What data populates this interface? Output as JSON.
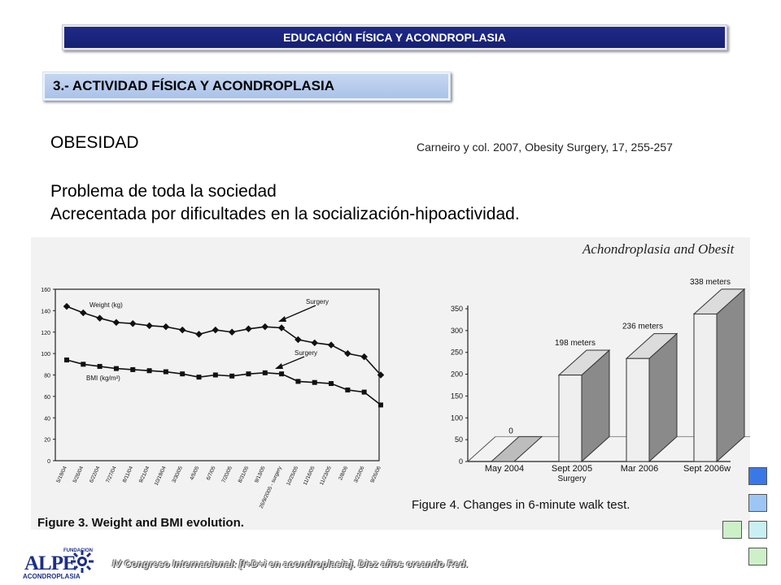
{
  "header": {
    "title": "EDUCACIÓN FÍSICA Y ACONDROPLASIA"
  },
  "section": {
    "title": "3.- ACTIVIDAD FÍSICA Y ACONDROPLASIA"
  },
  "body": {
    "heading": "OBESIDAD",
    "citation": "Carneiro y col. 2007, Obesity Surgery, 17, 255-257",
    "line1": "Problema de toda la sociedad",
    "line2": "Acrecentada por dificultades en la socialización-hipoactividad."
  },
  "figure_header": "Achondroplasia and Obesit",
  "chart_data": [
    {
      "type": "line",
      "caption": "Figure 3. Weight and BMI evolution.",
      "ylim": [
        0,
        160
      ],
      "yticks": [
        0,
        20,
        40,
        60,
        80,
        100,
        120,
        140,
        160
      ],
      "x": [
        "5/19/04",
        "5/26/04",
        "6/22/04",
        "7/27/04",
        "8/11/04",
        "9/21/04",
        "10/19/04",
        "3/30/05",
        "4/5/05",
        "6/7/05",
        "7/20/05",
        "8/31/05",
        "9/13/05",
        "26/9/2005 - surgery",
        "10/25/05",
        "11/16/05",
        "11/23/05",
        "2/8/06",
        "3/22/06",
        "9/26/06"
      ],
      "series": [
        {
          "name": "Weight (kg)",
          "values": [
            144,
            138,
            133,
            129,
            128,
            126,
            125,
            122,
            118,
            122,
            120,
            123,
            125,
            124,
            113,
            110,
            108,
            100,
            97,
            80
          ]
        },
        {
          "name": "BMI (kg/m²)",
          "values": [
            94,
            90,
            88,
            86,
            85,
            84,
            83,
            81,
            78,
            80,
            79,
            81,
            82,
            81,
            74,
            73,
            72,
            66,
            64,
            52
          ]
        }
      ],
      "annotations": [
        "Surgery",
        "Surgery"
      ]
    },
    {
      "type": "bar",
      "caption": "Figure 4. Changes in 6-minute walk test.",
      "categories": [
        "May 2004",
        "Sept 2005",
        "Mar 2006",
        "Sept 2006w"
      ],
      "category_notes": [
        "",
        "Surgery",
        "",
        ""
      ],
      "values": [
        0,
        198,
        236,
        338
      ],
      "data_labels": [
        "0",
        "198 meters",
        "236 meters",
        "338 meters"
      ],
      "ylim": [
        0,
        350
      ],
      "yticks": [
        0,
        50,
        100,
        150,
        200,
        250,
        300,
        350
      ]
    }
  ],
  "footer": {
    "text": "IV Congreso Internacional: [I+D+i en acondroplasia]. Diez años creando Red.",
    "logo_name": "ALPE",
    "logo_top": "FUNDACION",
    "logo_sub": "ACONDROPLASIA"
  },
  "colors": {
    "banner": "#1f2a8c",
    "section": "#b4c8ec"
  }
}
